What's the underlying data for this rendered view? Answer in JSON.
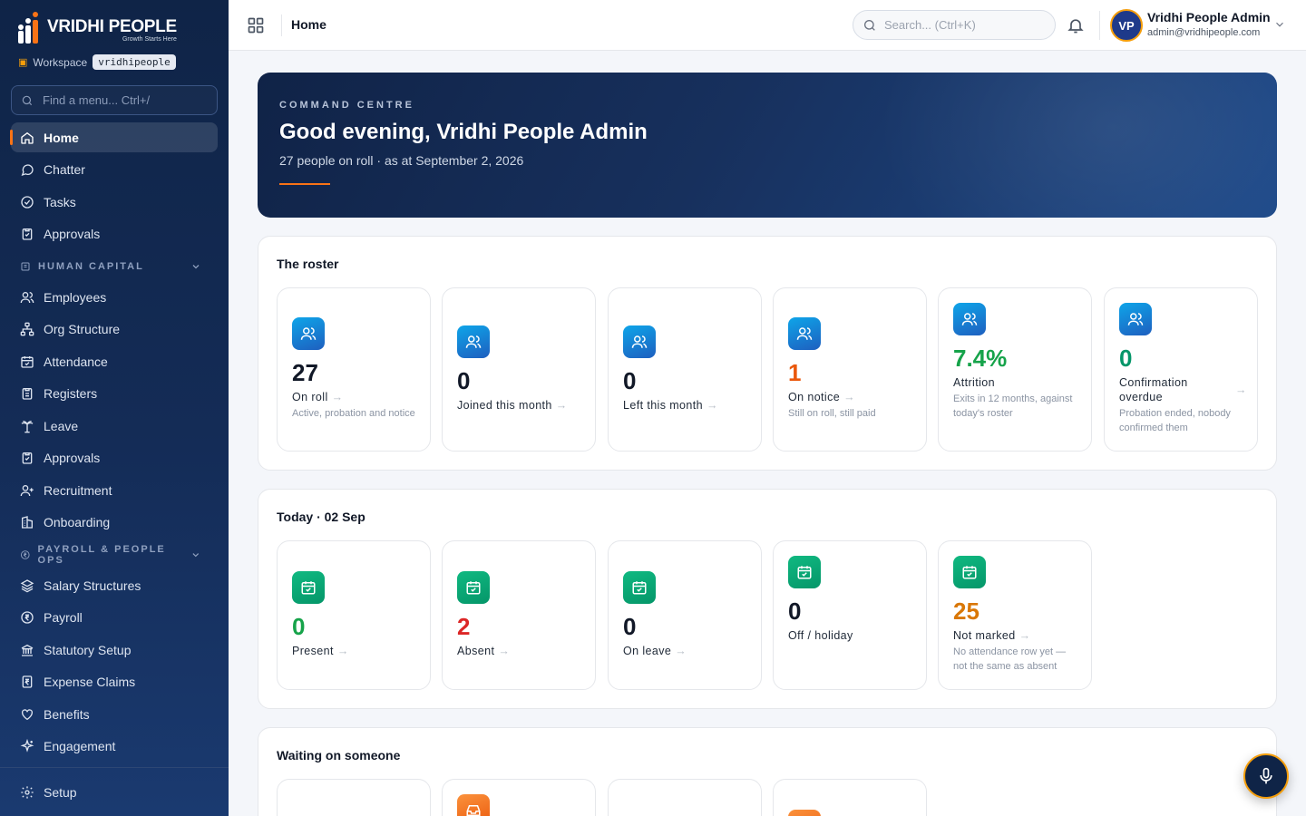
{
  "brand": {
    "name": "VRIDHI PEOPLE",
    "tagline": "Growth Starts Here"
  },
  "workspace": {
    "label": "Workspace",
    "slug": "vridhipeople"
  },
  "menu_search": {
    "placeholder": "Find a menu... Ctrl+/"
  },
  "nav": {
    "top": [
      {
        "label": "Home",
        "icon": "home-icon",
        "active": true
      },
      {
        "label": "Chatter",
        "icon": "chat-icon"
      },
      {
        "label": "Tasks",
        "icon": "check-circle-icon"
      },
      {
        "label": "Approvals",
        "icon": "clipboard-check-icon"
      }
    ],
    "human_capital": {
      "title": "HUMAN CAPITAL",
      "items": [
        {
          "label": "Employees",
          "icon": "users-icon"
        },
        {
          "label": "Org Structure",
          "icon": "org-chart-icon"
        },
        {
          "label": "Attendance",
          "icon": "calendar-check-icon"
        },
        {
          "label": "Registers",
          "icon": "clipboard-list-icon"
        },
        {
          "label": "Leave",
          "icon": "palm-tree-icon"
        },
        {
          "label": "Approvals",
          "icon": "clipboard-check-icon"
        },
        {
          "label": "Recruitment",
          "icon": "user-plus-icon"
        },
        {
          "label": "Onboarding",
          "icon": "building-icon"
        }
      ]
    },
    "payroll": {
      "title": "PAYROLL & PEOPLE OPS",
      "items": [
        {
          "label": "Salary Structures",
          "icon": "layers-icon"
        },
        {
          "label": "Payroll",
          "icon": "rupee-circle-icon"
        },
        {
          "label": "Statutory Setup",
          "icon": "bank-icon"
        },
        {
          "label": "Expense Claims",
          "icon": "receipt-icon"
        },
        {
          "label": "Benefits",
          "icon": "heart-hand-icon"
        },
        {
          "label": "Engagement",
          "icon": "sparkles-icon"
        }
      ]
    },
    "bottom": {
      "label": "Setup",
      "icon": "gear-icon"
    }
  },
  "topbar": {
    "title": "Home",
    "search_placeholder": "Search... (Ctrl+K)",
    "user": {
      "initials": "VP",
      "name": "Vridhi People Admin",
      "email": "admin@vridhipeople.com"
    }
  },
  "hero": {
    "kicker": "COMMAND CENTRE",
    "title": "Good evening, Vridhi People Admin",
    "subtitle": "27 people on roll · as at September 2, 2026"
  },
  "roster": {
    "title": "The roster",
    "cards": [
      {
        "value": "27",
        "label": "On roll",
        "desc": "Active, probation and notice"
      },
      {
        "value": "0",
        "label": "Joined this month",
        "desc": ""
      },
      {
        "value": "0",
        "label": "Left this month",
        "desc": ""
      },
      {
        "value": "1",
        "label": "On notice",
        "desc": "Still on roll, still paid"
      },
      {
        "value": "7.4%",
        "label": "Attrition",
        "desc": "Exits in 12 months, against today's roster"
      },
      {
        "value": "0",
        "label": "Confirmation overdue",
        "desc": "Probation ended, nobody confirmed them"
      }
    ]
  },
  "today": {
    "title": "Today · 02 Sep",
    "cards": [
      {
        "value": "0",
        "label": "Present",
        "desc": ""
      },
      {
        "value": "2",
        "label": "Absent",
        "desc": ""
      },
      {
        "value": "0",
        "label": "On leave",
        "desc": ""
      },
      {
        "value": "0",
        "label": "Off / holiday",
        "desc": ""
      },
      {
        "value": "25",
        "label": "Not marked",
        "desc": "No attendance row yet — not the same as absent"
      }
    ]
  },
  "waiting": {
    "title": "Waiting on someone"
  },
  "colors": {
    "accent": "#f97316",
    "sidebar": "#0f2447",
    "blue_icon": "#1e5fbf",
    "green_icon": "#059669"
  }
}
